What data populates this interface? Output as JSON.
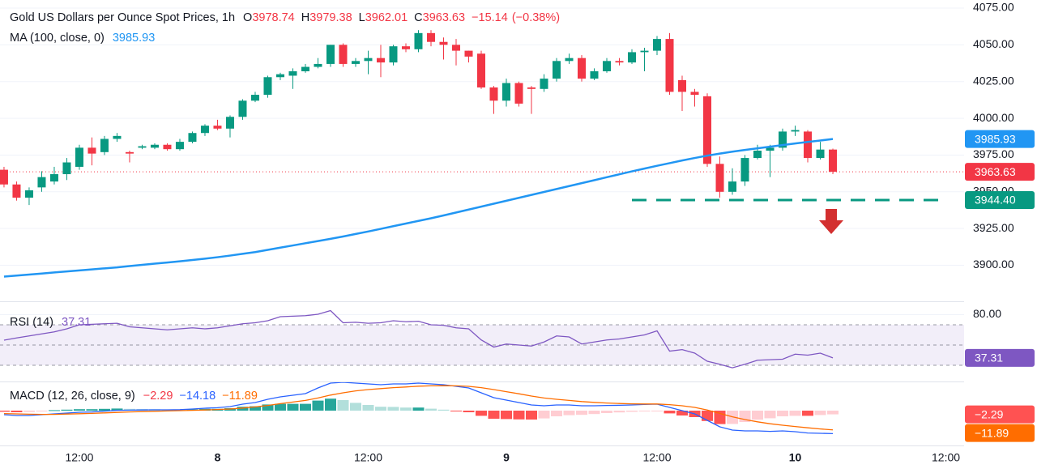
{
  "header": {
    "title": "Gold US Dollars per Ounce Spot Prices, 1h",
    "open_label": "O",
    "high_label": "H",
    "low_label": "L",
    "close_label": "C",
    "change": "−15.14",
    "change_pct": "(−0.38%)"
  },
  "chart_data": [
    {
      "type": "candlestick",
      "x": [
        0,
        1,
        2,
        3,
        4,
        5,
        6,
        7,
        8,
        9,
        10,
        11,
        12,
        13,
        14,
        15,
        16,
        17,
        18,
        19,
        20,
        21,
        22,
        23,
        24,
        25,
        26,
        27,
        28,
        29,
        30,
        31,
        32,
        33,
        34,
        35,
        36,
        37,
        38,
        39,
        40,
        41,
        42,
        43,
        44,
        45,
        46,
        47,
        48,
        49,
        50,
        51,
        52,
        53,
        54,
        55,
        56,
        57,
        58,
        59,
        60,
        61,
        62,
        63,
        64,
        65,
        66
      ],
      "open": [
        3965,
        3955,
        3946,
        3953,
        3957,
        3962,
        3967,
        3980,
        3977,
        3986,
        3977,
        3980,
        3980,
        3982,
        3979,
        3984,
        3990,
        3995,
        3993,
        4001,
        4012,
        4016,
        4028,
        4029,
        4032,
        4035,
        4037,
        4050,
        4037,
        4039,
        4041,
        4038,
        4049,
        4047,
        4058,
        4052,
        4050,
        4046,
        4044,
        4021,
        4012,
        4024,
        4021,
        4020,
        4027,
        4039,
        4041,
        4027,
        4032,
        4039,
        4038,
        4045,
        4046,
        4054,
        4026,
        4018,
        4015,
        3969,
        3950,
        3957,
        3973,
        3978,
        3980,
        3991,
        3991,
        3973,
        3978.74
      ],
      "high": [
        3967,
        3957,
        3953,
        3964,
        3967,
        3973,
        3982,
        3987,
        3988,
        3990,
        3978,
        3982,
        3983,
        3983,
        3986,
        3991,
        3996,
        3999,
        4002,
        4013,
        4018,
        4029,
        4031,
        4034,
        4037,
        4041,
        4050,
        4051,
        4041,
        4046,
        4050,
        4050,
        4051,
        4060,
        4060,
        4055,
        4054,
        4046,
        4046,
        4022,
        4027,
        4025,
        4022,
        4030,
        4041,
        4044,
        4043,
        4034,
        4041,
        4041,
        4047,
        4048,
        4056,
        4058,
        4029,
        4020,
        4017,
        3974,
        3966,
        3975,
        3982,
        3982,
        3993,
        3995,
        3992,
        3984,
        3979.38
      ],
      "low": [
        3953,
        3944,
        3941,
        3950,
        3955,
        3958,
        3965,
        3968,
        3975,
        3984,
        3970,
        3979,
        3979,
        3978,
        3978,
        3983,
        3988,
        3992,
        3987,
        3999,
        4011,
        4014,
        4026,
        4020,
        4031,
        4034,
        4035,
        4035,
        4035,
        4030,
        4028,
        4036,
        4045,
        4045,
        4049,
        4040,
        4036,
        4038,
        4020,
        4003,
        4008,
        4008,
        4003,
        4018,
        4025,
        4037,
        4025,
        4026,
        4031,
        4036,
        4037,
        4032,
        4043,
        4016,
        4005,
        4008,
        3967,
        3946,
        3948,
        3954,
        3972,
        3960,
        3978,
        3988,
        3970,
        3972,
        3962.01
      ],
      "close": [
        3955,
        3946,
        3951,
        3960,
        3962,
        3970,
        3980,
        3976,
        3986,
        3988,
        3976,
        3981,
        3982,
        3979,
        3984,
        3990,
        3995,
        3993,
        4001,
        4012,
        4016,
        4028,
        4030,
        4032,
        4035,
        4037,
        4050,
        4037,
        4039,
        4041,
        4038,
        4049,
        4047,
        4058,
        4052,
        4050,
        4046,
        4042,
        4021,
        4012,
        4024,
        4010,
        4020,
        4027,
        4039,
        4041,
        4027,
        4032,
        4039,
        4038,
        4045,
        4046,
        4054,
        4018,
        4018,
        4016,
        3969,
        3950,
        3957,
        3973,
        3978,
        3980,
        3991,
        3992,
        3973,
        3978.74,
        3963.63
      ],
      "up_color": "#089981",
      "down_color": "#f23645",
      "xlim": [
        -0.32,
        76.45
      ],
      "xticks": [
        {
          "value": 6,
          "label": "12:00"
        },
        {
          "value": 17,
          "label": "8"
        },
        {
          "value": 29,
          "label": "12:00"
        },
        {
          "value": 40,
          "label": "9"
        },
        {
          "value": 52,
          "label": "12:00"
        },
        {
          "value": 63,
          "label": "10"
        },
        {
          "value": 75,
          "label": "12:00"
        }
      ],
      "ylim": [
        3875.5,
        4080.5
      ],
      "yticks": [
        {
          "value": 4075,
          "label": "4075.00"
        },
        {
          "value": 4050,
          "label": "4050.00"
        },
        {
          "value": 4025,
          "label": "4025.00"
        },
        {
          "value": 4000,
          "label": "4000.00"
        },
        {
          "value": 3975,
          "label": "3975.00"
        },
        {
          "value": 3950,
          "label": "3950.00"
        },
        {
          "value": 3925,
          "label": "3925.00"
        },
        {
          "value": 3900,
          "label": "3900.00"
        }
      ],
      "grid": true,
      "overlays": [
        {
          "name": "MA (100, close, 0)",
          "color": "#2196f3",
          "values": [
            3892.3,
            3893.0,
            3893.7,
            3894.4,
            3895.1,
            3895.8,
            3896.5,
            3897.2,
            3897.9,
            3898.6,
            3899.5,
            3900.3,
            3901.1,
            3901.9,
            3902.7,
            3903.6,
            3904.5,
            3905.5,
            3906.6,
            3907.8,
            3909.0,
            3910.5,
            3912.0,
            3913.5,
            3915.0,
            3916.5,
            3918.0,
            3919.6,
            3921.3,
            3923.0,
            3924.8,
            3926.6,
            3928.4,
            3930.2,
            3932.0,
            3933.9,
            3935.9,
            3937.9,
            3939.9,
            3941.9,
            3943.9,
            3945.9,
            3947.9,
            3949.9,
            3951.9,
            3953.9,
            3955.9,
            3957.9,
            3959.9,
            3961.9,
            3963.9,
            3965.8,
            3967.7,
            3969.5,
            3971.3,
            3973.0,
            3974.6,
            3976.0,
            3977.3,
            3978.5,
            3979.6,
            3980.7,
            3981.8,
            3982.9,
            3983.9,
            3984.9,
            3985.93
          ]
        }
      ],
      "support": {
        "value": 3944.4,
        "label": "3944.40",
        "color": "#089981",
        "x_range": [
          50,
          75
        ]
      }
    },
    {
      "type": "rsi",
      "name": "RSI (14)",
      "color": "#7e57c2",
      "values": [
        54.8,
        57,
        59,
        61,
        63,
        66,
        70,
        70.5,
        71,
        71.5,
        68,
        67,
        66,
        65,
        66,
        67,
        66,
        67,
        69,
        71,
        72,
        74,
        78,
        78.5,
        79,
        80.4,
        84,
        72,
        72.5,
        71.5,
        72,
        74,
        73,
        73.5,
        70,
        69.5,
        67,
        66,
        55,
        48,
        51,
        50,
        49,
        53,
        59,
        58,
        51,
        53,
        55,
        56,
        58,
        60,
        64,
        44,
        45.5,
        42,
        34,
        31,
        27.5,
        31,
        35,
        35.5,
        36,
        41,
        40,
        42,
        37.31
      ],
      "ylim": [
        14,
        92.4
      ],
      "yticks": [
        {
          "value": 80,
          "label": "80.00"
        }
      ],
      "levels": [
        70,
        50,
        30
      ]
    },
    {
      "type": "macd",
      "name": "MACD (12, 26, close, 9)",
      "histogram": [
        -0.7,
        -1,
        -0.8,
        -0.2,
        0.3,
        0.6,
        0.9,
        0.9,
        1.1,
        1.3,
        1.1,
        1.0,
        0.9,
        0.7,
        0.6,
        0.8,
        1.1,
        1.1,
        1.5,
        2.4,
        2.7,
        3.8,
        4.2,
        4.2,
        4.2,
        6.2,
        7.4,
        6.5,
        4.8,
        3.5,
        2.4,
        2.3,
        1.9,
        1.9,
        1.2,
        0.6,
        -0.3,
        -1,
        -3.2,
        -5,
        -5.2,
        -5.4,
        -5.5,
        -4.8,
        -3.5,
        -2.8,
        -2.6,
        -2.1,
        -1.5,
        -1.1,
        -0.7,
        -0.3,
        -0.1,
        -1.7,
        -3,
        -4,
        -6.4,
        -8.3,
        -8.2,
        -7,
        -5.6,
        -4.7,
        -3.5,
        -3.2,
        -3.2,
        -2.7,
        -2.29
      ],
      "macd": [
        -2.5,
        -3,
        -3,
        -2.5,
        -2,
        -1.5,
        -1,
        -0.8,
        -0.3,
        0.2,
        0.3,
        0.4,
        0.5,
        0.5,
        0.6,
        1,
        1.5,
        1.8,
        2.5,
        4,
        5,
        7,
        8.5,
        9.5,
        10.5,
        14,
        17,
        17.5,
        17,
        16.5,
        16,
        16.5,
        16.5,
        17,
        16.5,
        16,
        15,
        14,
        11,
        8,
        6.5,
        5,
        3.5,
        3,
        3.5,
        3.5,
        3,
        3,
        3.2,
        3.3,
        3.5,
        3.8,
        4,
        2,
        0,
        -2,
        -6,
        -10,
        -12,
        -12.5,
        -12.5,
        -12.8,
        -12.5,
        -13,
        -13.8,
        -14,
        -14.18
      ],
      "signal": [
        -1.8,
        -2,
        -2.2,
        -2.3,
        -2.3,
        -2.1,
        -1.9,
        -1.7,
        -1.4,
        -1.1,
        -0.8,
        -0.6,
        -0.4,
        -0.2,
        0,
        0.2,
        0.4,
        0.7,
        1,
        1.6,
        2.3,
        3.2,
        4.3,
        5.3,
        6.3,
        7.8,
        9.6,
        11,
        12.2,
        13,
        13.6,
        14.2,
        14.6,
        15.1,
        15.3,
        15.4,
        15.3,
        15,
        14.2,
        13,
        11.7,
        10.4,
        9,
        7.8,
        7,
        6.3,
        5.6,
        5.1,
        4.7,
        4.4,
        4.2,
        4.1,
        4.1,
        3.7,
        3,
        2,
        0.4,
        -1.7,
        -3.8,
        -5.5,
        -6.9,
        -8.1,
        -9,
        -9.8,
        -10.6,
        -11.3,
        -11.89
      ],
      "value_labels": {
        "histogram": "−2.29",
        "macd": "−14.18",
        "signal": "−11.89"
      },
      "colors": {
        "macd": "#2962ff",
        "signal": "#ff6d00",
        "up_strong": "#26a69a",
        "up_weak": "#b2dfdb",
        "down_strong": "#ff5252",
        "down_weak": "#ffcdd2"
      },
      "ylim": [
        -21.5,
        17.5
      ]
    }
  ]
}
